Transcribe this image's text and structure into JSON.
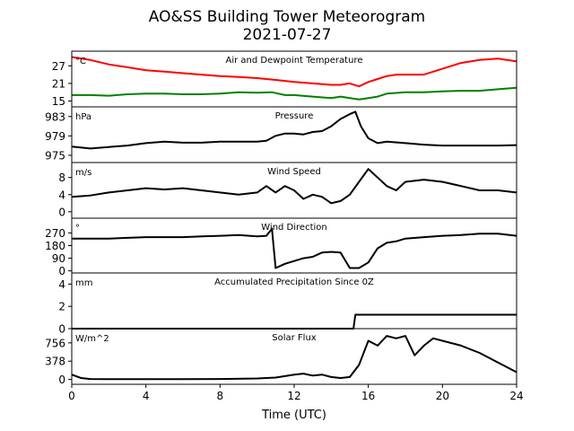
{
  "figure": {
    "title_line1": "AO&SS Building Tower Meteorogram",
    "title_line2": "2021-07-27",
    "xlabel": "Time (UTC)",
    "xlim": [
      0,
      24
    ],
    "x_ticks": [
      0,
      4,
      8,
      12,
      16,
      20,
      24
    ]
  },
  "chart_data": [
    {
      "type": "line",
      "title": "Air and Dewpoint Temperature",
      "unit": "°C",
      "ylim": [
        13,
        32
      ],
      "y_ticks": [
        15,
        21,
        27
      ],
      "series": [
        {
          "color": "#ff0000",
          "x": [
            0,
            1,
            2,
            3,
            4,
            5,
            6,
            7,
            8,
            9,
            10,
            11,
            12,
            13,
            14,
            14.5,
            15,
            15.5,
            16,
            16.5,
            17,
            17.5,
            18,
            19,
            20,
            21,
            22,
            23,
            24
          ],
          "values": [
            30,
            29,
            27.5,
            26.5,
            25.5,
            25,
            24.5,
            24,
            23.5,
            23.2,
            22.8,
            22.2,
            21.5,
            21,
            20.5,
            20.5,
            21,
            20,
            21.5,
            22.5,
            23.5,
            24,
            24,
            24,
            26,
            28,
            29,
            29.5,
            28.5
          ]
        },
        {
          "color": "#008000",
          "x": [
            0,
            1,
            2,
            3,
            4,
            5,
            6,
            7,
            8,
            9,
            10,
            10.8,
            11.5,
            12,
            13,
            14,
            14.5,
            15,
            15.5,
            16,
            16.5,
            17,
            18,
            19,
            20,
            21,
            22,
            23,
            24
          ],
          "values": [
            17,
            17,
            16.8,
            17.3,
            17.5,
            17.5,
            17.3,
            17.3,
            17.5,
            18,
            17.8,
            18,
            17,
            17,
            16.5,
            16,
            16.5,
            16,
            15.5,
            16,
            16.5,
            17.5,
            18,
            18,
            18.3,
            18.5,
            18.5,
            19,
            19.5
          ]
        }
      ]
    },
    {
      "type": "line",
      "title": "Pressure",
      "unit": "hPa",
      "ylim": [
        973.5,
        985
      ],
      "y_ticks": [
        975,
        979,
        983
      ],
      "series": [
        {
          "color": "#000000",
          "x": [
            0,
            1,
            2,
            3,
            4,
            5,
            6,
            7,
            8,
            9,
            10,
            10.5,
            11,
            11.5,
            12,
            12.5,
            13,
            13.5,
            14,
            14.5,
            15,
            15.3,
            15.6,
            16,
            16.5,
            17,
            18,
            19,
            20,
            21,
            22,
            23,
            24
          ],
          "values": [
            976.8,
            976.4,
            976.7,
            977,
            977.5,
            977.8,
            977.6,
            977.6,
            977.8,
            977.8,
            977.8,
            978,
            979,
            979.5,
            979.5,
            979.3,
            979.8,
            980,
            981,
            982.5,
            983.5,
            984,
            981,
            978.5,
            977.5,
            977.8,
            977.5,
            977.2,
            977,
            977,
            977,
            977,
            977.1
          ]
        }
      ]
    },
    {
      "type": "line",
      "title": "Wind Speed",
      "unit": "m/s",
      "ylim": [
        -1.5,
        11.5
      ],
      "y_ticks": [
        0,
        4,
        8
      ],
      "series": [
        {
          "color": "#000000",
          "x": [
            0,
            1,
            2,
            3,
            4,
            5,
            6,
            7,
            8,
            9,
            10,
            10.5,
            11,
            11.5,
            12,
            12.5,
            13,
            13.5,
            14,
            14.5,
            15,
            15.5,
            16,
            16.5,
            17,
            17.5,
            18,
            19,
            20,
            21,
            22,
            23,
            24
          ],
          "values": [
            3.5,
            3.8,
            4.5,
            5,
            5.5,
            5.2,
            5.5,
            5,
            4.5,
            4,
            4.5,
            6,
            4.5,
            6,
            5,
            3,
            4,
            3.5,
            2,
            2.5,
            4,
            7,
            10,
            8,
            6,
            5,
            7,
            7.5,
            7,
            6,
            5,
            5,
            4.5
          ]
        }
      ]
    },
    {
      "type": "line",
      "title": "Wind Direction",
      "unit": "°",
      "ylim": [
        -15,
        375
      ],
      "y_ticks": [
        0,
        90,
        180,
        270
      ],
      "series": [
        {
          "color": "#000000",
          "x": [
            0,
            1,
            2,
            3,
            4,
            5,
            6,
            7,
            8,
            9,
            10,
            10.5,
            10.8,
            11,
            11.5,
            12,
            12.5,
            13,
            13.5,
            14,
            14.5,
            15,
            15.5,
            16,
            16.5,
            17,
            17.5,
            18,
            19,
            20,
            21,
            22,
            23,
            24
          ],
          "values": [
            230,
            230,
            230,
            235,
            240,
            240,
            240,
            245,
            250,
            255,
            245,
            250,
            300,
            20,
            50,
            70,
            90,
            100,
            130,
            135,
            130,
            20,
            20,
            60,
            160,
            200,
            210,
            230,
            240,
            250,
            255,
            265,
            265,
            250
          ]
        }
      ]
    },
    {
      "type": "line",
      "title": "Accumulated Precipitation Since 0Z",
      "unit": "mm",
      "ylim": [
        0,
        5
      ],
      "y_ticks": [
        0,
        2,
        4
      ],
      "series": [
        {
          "color": "#000000",
          "x": [
            0,
            15.2,
            15.3,
            24
          ],
          "values": [
            0,
            0,
            1.25,
            1.25
          ]
        }
      ]
    },
    {
      "type": "line",
      "title": "Solar Flux",
      "unit": "W/m^2",
      "ylim": [
        -100,
        1050
      ],
      "y_ticks": [
        0,
        378,
        756
      ],
      "series": [
        {
          "color": "#000000",
          "x": [
            0,
            0.5,
            1,
            2,
            4,
            6,
            8,
            10,
            11,
            12,
            12.5,
            13,
            13.5,
            14,
            14.5,
            15,
            15.5,
            16,
            16.5,
            17,
            17.5,
            18,
            18.5,
            19,
            19.5,
            20,
            21,
            22,
            23,
            24
          ],
          "values": [
            100,
            30,
            10,
            5,
            5,
            5,
            10,
            20,
            40,
            100,
            120,
            80,
            100,
            50,
            30,
            50,
            300,
            800,
            700,
            900,
            850,
            900,
            500,
            700,
            850,
            800,
            700,
            550,
            350,
            150
          ]
        }
      ]
    }
  ]
}
